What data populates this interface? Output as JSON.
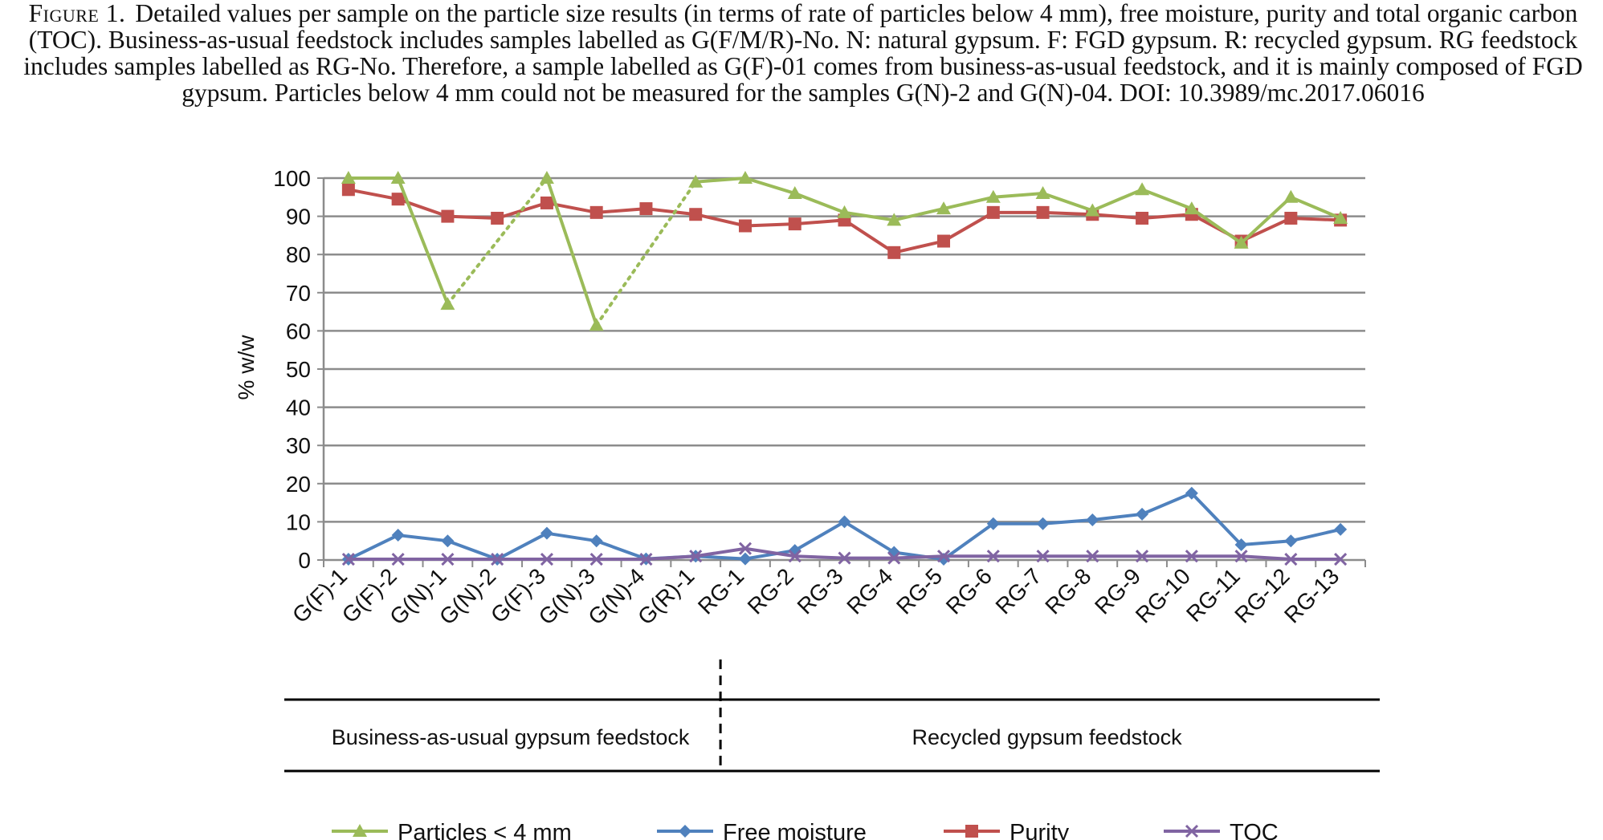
{
  "caption": {
    "label": "Figure 1.",
    "text": "Detailed values per sample on the particle size results (in terms of rate of particles below 4 mm), free moisture, purity and total organic carbon (TOC). Business-as-usual feedstock includes samples labelled as G(F/M/R)-No. N: natural gypsum. F: FGD gypsum. R: recycled gypsum. RG feedstock includes samples labelled as RG-No. Therefore, a sample labelled as G(F)-01 comes from business-as-usual feedstock, and it is mainly composed of FGD gypsum. Particles below 4 mm could not be measured for the samples G(N)-2 and G(N)-04. DOI: 10.3989/mc.2017.06016"
  },
  "chart_data": {
    "type": "line",
    "ylabel": "% w/w",
    "ylim": [
      0,
      100
    ],
    "yticks": [
      0,
      10,
      20,
      30,
      40,
      50,
      60,
      70,
      80,
      90,
      100
    ],
    "grid": true,
    "legend_position": "bottom",
    "categories": [
      "G(F)-1",
      "G(F)-2",
      "G(N)-1",
      "G(N)-2",
      "G(F)-3",
      "G(N)-3",
      "G(N)-4",
      "G(R)-1",
      "RG-1",
      "RG-2",
      "RG-3",
      "RG-4",
      "RG-5",
      "RG-6",
      "RG-7",
      "RG-8",
      "RG-9",
      "RG-10",
      "RG-11",
      "RG-12",
      "RG-13"
    ],
    "series": [
      {
        "name": "Particles < 4 mm",
        "color": "#9bbb59",
        "marker": "triangle",
        "values": [
          100,
          100,
          67,
          null,
          100,
          61.5,
          null,
          99,
          100,
          96,
          91,
          89,
          92,
          95,
          96,
          91.5,
          97,
          92,
          83,
          95,
          89.5
        ],
        "interpolated_gaps": true
      },
      {
        "name": "Free moisture",
        "color": "#4f81bd",
        "marker": "diamond",
        "values": [
          0.2,
          6.5,
          5,
          0.2,
          7,
          5,
          0.3,
          1,
          0.3,
          2.5,
          10,
          2,
          0.2,
          9.5,
          9.5,
          10.5,
          12,
          17.5,
          4,
          5,
          8
        ]
      },
      {
        "name": "Purity",
        "color": "#c0504d",
        "marker": "square",
        "values": [
          97,
          94.5,
          90,
          89.5,
          93.5,
          91,
          92,
          90.5,
          87.5,
          88,
          89,
          80.5,
          83.5,
          91,
          91,
          90.5,
          89.5,
          90.5,
          83.5,
          89.5,
          89
        ]
      },
      {
        "name": "TOC",
        "color": "#8064a2",
        "marker": "x",
        "values": [
          0.2,
          0.2,
          0.2,
          0.2,
          0.2,
          0.2,
          0.2,
          1,
          3,
          1,
          0.5,
          0.5,
          1,
          1,
          1,
          1,
          1,
          1,
          1,
          0.2,
          0.2
        ]
      }
    ],
    "groups": [
      {
        "label": "Business-as-usual gypsum feedstock",
        "from": "G(F)-1",
        "to": "G(R)-1"
      },
      {
        "label": "Recycled gypsum feedstock",
        "from": "RG-1",
        "to": "RG-13"
      }
    ]
  }
}
